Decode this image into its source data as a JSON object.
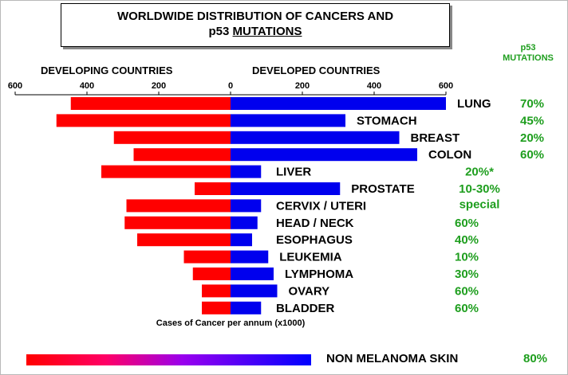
{
  "title": {
    "line1": "WORLDWIDE DISTRIBUTION OF CANCERS AND",
    "line2_plain": "p53 ",
    "line2_underlined": "MUTATIONS"
  },
  "p53_header": {
    "line1": "p53",
    "line2": "MUTATIONS"
  },
  "colors": {
    "developing": "#ff0000",
    "developed": "#0000ee",
    "mutation_text": "#1e9e1e"
  },
  "chart_data": {
    "type": "bar",
    "orientation": "horizontal-diverging",
    "left_axis_label": "DEVELOPING COUNTRIES",
    "right_axis_label": "DEVELOPED COUNTRIES",
    "xlabel": "Cases of Cancer per annum (x1000)",
    "left_ticks": [
      600,
      400,
      200,
      0
    ],
    "right_ticks": [
      200,
      400,
      600
    ],
    "xlim": [
      -600,
      600
    ],
    "categories": [
      "LUNG",
      "STOMACH",
      "BREAST",
      "COLON",
      "LIVER",
      "PROSTATE",
      "CERVIX / UTERI",
      "HEAD  / NECK",
      "ESOPHAGUS",
      "LEUKEMIA",
      "LYMPHOMA",
      "OVARY",
      "BLADDER"
    ],
    "series": [
      {
        "name": "DEVELOPING COUNTRIES",
        "values": [
          445,
          485,
          325,
          270,
          360,
          100,
          290,
          295,
          260,
          130,
          105,
          80,
          80
        ]
      },
      {
        "name": "DEVELOPED COUNTRIES",
        "values": [
          600,
          320,
          470,
          520,
          85,
          305,
          85,
          75,
          60,
          105,
          120,
          130,
          85
        ]
      }
    ],
    "p53_mutations": [
      "70%",
      "45%",
      "20%",
      "60%",
      "20%*",
      "10-30%",
      "special",
      "60%",
      "40%",
      "10%",
      "30%",
      "60%",
      "60%"
    ],
    "extra_row": {
      "label": "NON MELANOMA SKIN",
      "p53": "80%"
    }
  }
}
